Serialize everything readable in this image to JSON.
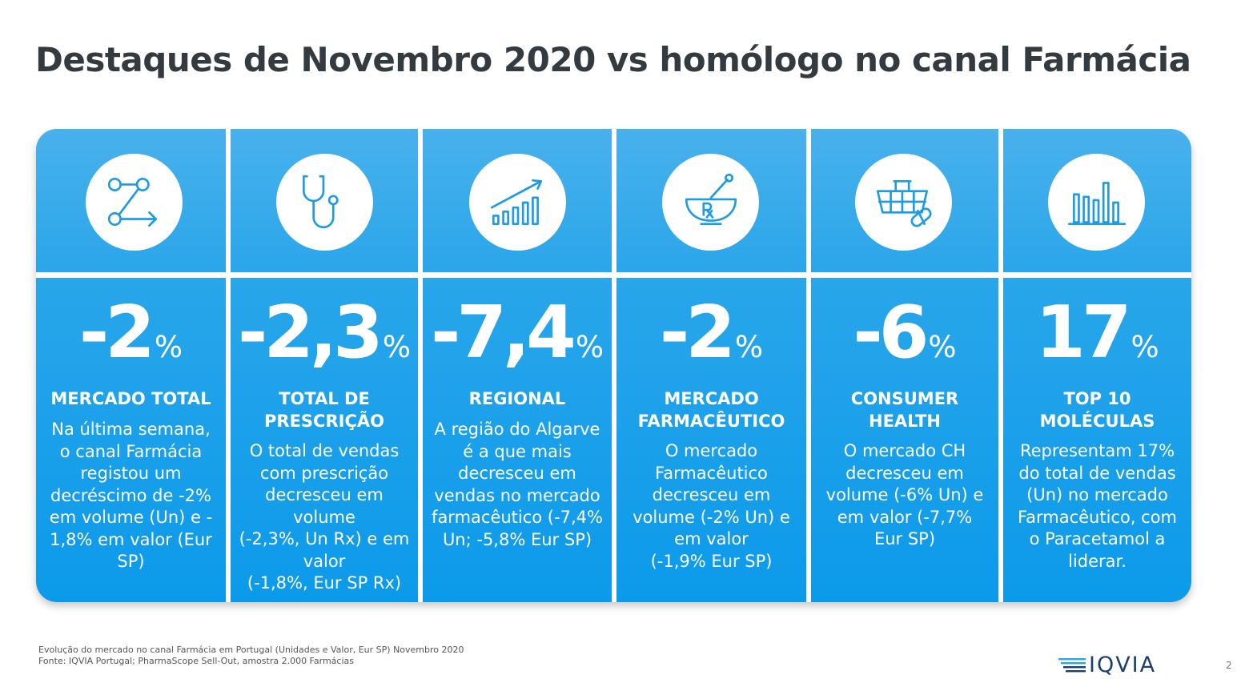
{
  "title": "Destaques de Novembro 2020 vs homólogo no canal Farmácia",
  "cards": [
    {
      "icon": "network-arrows-icon",
      "value": "-2",
      "unit": "%",
      "heading_lines": [
        "MERCADO TOTAL"
      ],
      "desc_lines": [
        "Na última semana,",
        "o canal Farmácia",
        "registou um",
        "decréscimo de -2%",
        "em volume (Un) e -",
        "1,8% em valor (Eur",
        "SP)"
      ]
    },
    {
      "icon": "stethoscope-icon",
      "value": "-2,3",
      "unit": "%",
      "heading_lines": [
        "TOTAL DE",
        "PRESCRIÇÃO"
      ],
      "desc_lines": [
        "O total de vendas",
        "com prescrição",
        "decresceu em",
        "volume",
        "(-2,3%, Un Rx) e em",
        "valor",
        "(-1,8%, Eur SP Rx)"
      ]
    },
    {
      "icon": "growth-chart-icon",
      "value": "-7,4",
      "unit": "%",
      "heading_lines": [
        "REGIONAL"
      ],
      "desc_lines": [
        "A região do Algarve",
        "é a que mais",
        "decresceu em",
        "vendas no mercado",
        "farmacêutico (-7,4%",
        "Un; -5,8% Eur SP)"
      ]
    },
    {
      "icon": "mortar-pestle-rx-icon",
      "value": "-2",
      "unit": "%",
      "heading_lines": [
        "MERCADO",
        "FARMACÊUTICO"
      ],
      "desc_lines": [
        "O mercado",
        "Farmacêutico",
        "decresceu em",
        "volume (-2% Un) e",
        "em valor",
        "(-1,9% Eur SP)"
      ]
    },
    {
      "icon": "basket-pill-icon",
      "value": "-6",
      "unit": "%",
      "heading_lines": [
        "CONSUMER",
        "HEALTH"
      ],
      "desc_lines": [
        "O mercado CH",
        "decresceu em",
        "volume (-6% Un) e",
        "em valor (-7,7%",
        "Eur SP)"
      ]
    },
    {
      "icon": "bar-chart-icon",
      "value": "17",
      "unit": "%",
      "heading_lines": [
        "TOP 10",
        "MOLÉCULAS"
      ],
      "desc_lines": [
        "Representam 17%",
        "do total de vendas",
        "(Un) no mercado",
        "Farmacêutico, com",
        "o Paracetamol a",
        "liderar."
      ]
    }
  ],
  "footnote": {
    "line1": "Evolução do mercado no canal Farmácia em Portugal (Unidades e Valor, Eur SP) Novembro 2020",
    "line2": "Fonte: IQVIA Portugal; PharmaScope Sell-Out, amostra 2.000 Farmácias"
  },
  "logo_text": "IQVIA",
  "page_number": "2",
  "colors": {
    "title": "#333a40",
    "panel_top": "#49b1ec",
    "panel_bottom": "#0b9aea",
    "icon_stroke": "#1e9be3",
    "logo": "#1a3f70"
  }
}
